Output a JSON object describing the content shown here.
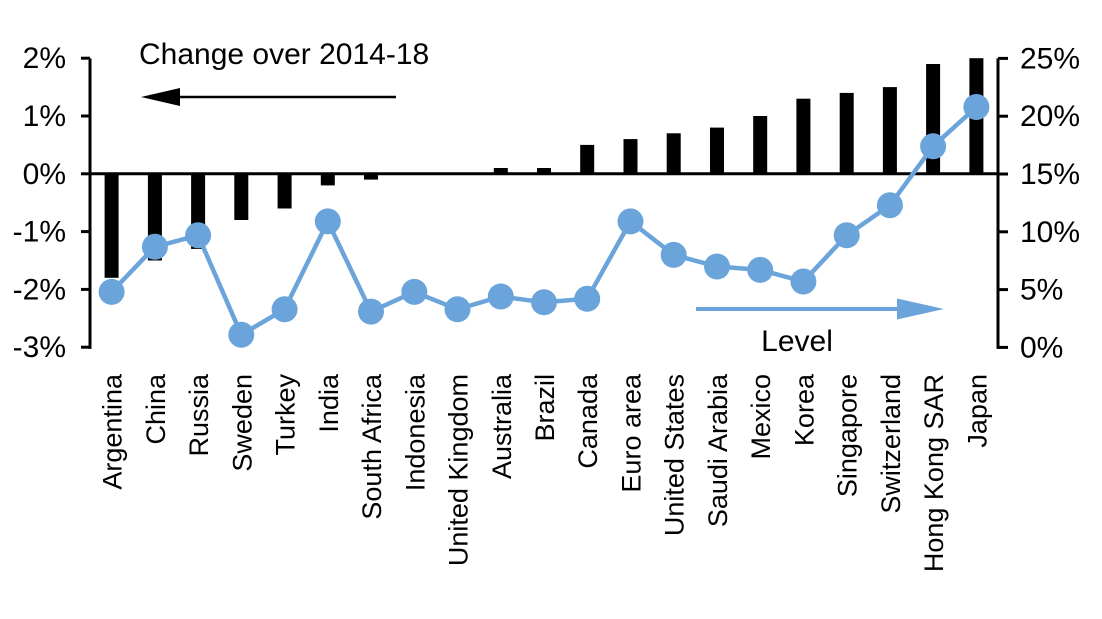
{
  "chart_data": {
    "type": "bar",
    "subtype": "dual-axis bar + line with markers",
    "categories": [
      "Argentina",
      "China",
      "Russia",
      "Sweden",
      "Turkey",
      "India",
      "South Africa",
      "Indonesia",
      "United Kingdom",
      "Australia",
      "Brazil",
      "Canada",
      "Euro area",
      "United States",
      "Saudi Arabia",
      "Mexico",
      "Korea",
      "Singapore",
      "Switzerland",
      "Hong Kong SAR",
      "Japan"
    ],
    "series": [
      {
        "name": "Change over 2014-18",
        "type": "bar",
        "axis": "left",
        "color": "#000000",
        "values": [
          -1.8,
          -1.5,
          -1.3,
          -0.8,
          -0.6,
          -0.2,
          -0.1,
          0.0,
          0.0,
          0.1,
          0.1,
          0.5,
          0.6,
          0.7,
          0.8,
          1.0,
          1.3,
          1.4,
          1.5,
          1.9,
          2.0
        ]
      },
      {
        "name": "Level",
        "type": "line",
        "axis": "right",
        "color": "#6BA4DB",
        "values": [
          4.8,
          8.7,
          9.7,
          1.1,
          3.3,
          10.9,
          3.1,
          4.8,
          3.3,
          4.4,
          3.9,
          4.2,
          10.9,
          8.0,
          7.0,
          6.7,
          5.7,
          9.7,
          12.3,
          17.4,
          20.8
        ]
      }
    ],
    "left_axis": {
      "tick_labels": [
        "2%",
        "1%",
        "0%",
        "-1%",
        "-2%",
        "-3%"
      ],
      "tick_values": [
        2,
        1,
        0,
        -1,
        -2,
        -3
      ],
      "min": -3,
      "max": 2
    },
    "right_axis": {
      "tick_labels": [
        "25%",
        "20%",
        "15%",
        "10%",
        "5%",
        "0%"
      ],
      "tick_values": [
        25,
        20,
        15,
        10,
        5,
        0
      ],
      "min": 0,
      "max": 25
    },
    "annotations": {
      "left_series_label": "Change over 2014-18",
      "right_series_label": "Level"
    },
    "legend_position": "annotations with arrows inside plot",
    "grid": false,
    "accent_color": "#6BA4DB",
    "bar_color": "#000000"
  }
}
